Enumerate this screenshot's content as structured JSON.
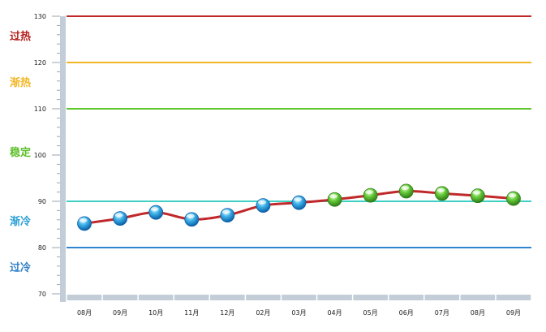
{
  "chart_data": {
    "type": "line",
    "categories": [
      "08月",
      "09月",
      "10月",
      "11月",
      "12月",
      "02月",
      "03月",
      "04月",
      "05月",
      "06月",
      "07月",
      "08月",
      "09月"
    ],
    "values": [
      85.2,
      86.3,
      87.6,
      86.1,
      87.0,
      89.1,
      89.7,
      90.4,
      91.3,
      92.2,
      91.7,
      91.2,
      90.6
    ],
    "point_colors": [
      "blue",
      "blue",
      "blue",
      "blue",
      "blue",
      "blue",
      "blue",
      "green",
      "green",
      "green",
      "green",
      "green",
      "green"
    ],
    "ylim": [
      70,
      130
    ],
    "yticks": [
      "70",
      "80",
      "90",
      "100",
      "110",
      "120",
      "130"
    ],
    "line_color": "#c0282a",
    "thresholds": [
      {
        "value": 130,
        "color": "#c0282a"
      },
      {
        "value": 120,
        "color": "#f2b624"
      },
      {
        "value": 110,
        "color": "#5cc62b"
      },
      {
        "value": 90,
        "color": "#3fcfc3"
      },
      {
        "value": 80,
        "color": "#2f86d0"
      }
    ],
    "zones": [
      {
        "label": "过热",
        "color": "#b2201e"
      },
      {
        "label": "渐热",
        "color": "#f2b624"
      },
      {
        "label": "稳定",
        "color": "#5cbf2a"
      },
      {
        "label": "渐冷",
        "color": "#2a9fd6"
      },
      {
        "label": "过冷",
        "color": "#2f7fc7"
      }
    ]
  }
}
